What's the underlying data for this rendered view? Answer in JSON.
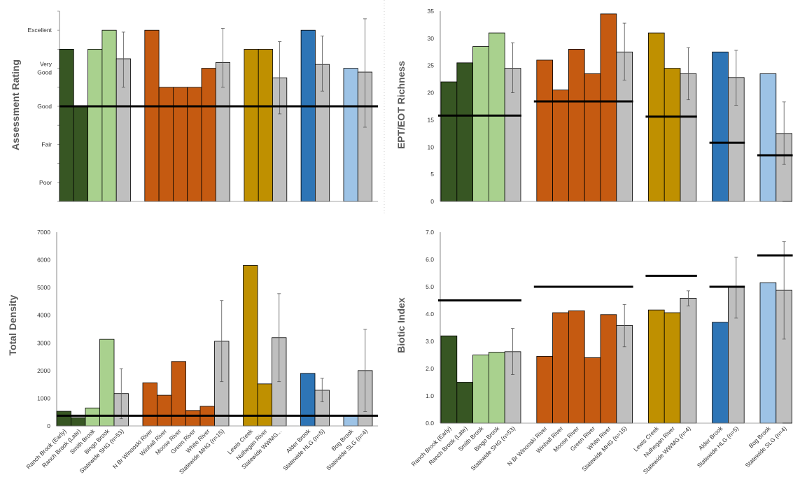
{
  "colors": {
    "dark_green": "#375623",
    "light_green": "#a9d18e",
    "orange": "#c55a11",
    "gold": "#bf9000",
    "blue": "#2e75b6",
    "light_blue": "#9dc3e6",
    "gray": "#bfbfbf",
    "reference_line": "#000000"
  },
  "chart_data": [
    {
      "id": "assessment",
      "type": "bar",
      "ylabel": "Assessment Rating",
      "ylim": [
        0,
        5
      ],
      "y_categorical_ticks": [
        {
          "label": "Excellent",
          "value": 4.5
        },
        {
          "label": "Very\nGood",
          "value": 3.5
        },
        {
          "label": "Good",
          "value": 2.5
        },
        {
          "label": "Fair",
          "value": 1.5
        },
        {
          "label": "Poor",
          "value": 0.5
        }
      ],
      "groups": [
        {
          "bars": [
            {
              "category": "Ranch Brook (Early)",
              "value": 4.0,
              "color": "dark_green"
            },
            {
              "category": "Ranch Brook (Late)",
              "value": 2.5,
              "color": "dark_green"
            },
            {
              "category": "Smith Brook",
              "value": 4.0,
              "color": "light_green"
            },
            {
              "category": "Bingo Brook",
              "value": 4.5,
              "color": "light_green"
            },
            {
              "category": "Statewide SHG (n=53)",
              "value": 3.75,
              "color": "gray",
              "err": [
                3.0,
                4.45
              ]
            }
          ]
        },
        {
          "bars": [
            {
              "category": "N Br Winooski River",
              "value": 4.5,
              "color": "orange"
            },
            {
              "category": "Winhall River",
              "value": 3.0,
              "color": "orange"
            },
            {
              "category": "Moose River",
              "value": 3.0,
              "color": "orange"
            },
            {
              "category": "Green River",
              "value": 3.0,
              "color": "orange"
            },
            {
              "category": "White River",
              "value": 3.5,
              "color": "orange"
            },
            {
              "category": "Statewide MHG (n=15)",
              "value": 3.65,
              "color": "gray",
              "err": [
                3.0,
                4.55
              ]
            }
          ]
        },
        {
          "bars": [
            {
              "category": "Lewis Creek",
              "value": 4.0,
              "color": "gold"
            },
            {
              "category": "Nulhegan River",
              "value": 4.0,
              "color": "gold"
            },
            {
              "category": "Statewide WWMG...",
              "value": 3.25,
              "color": "gray",
              "err": [
                2.3,
                4.2
              ]
            }
          ]
        },
        {
          "bars": [
            {
              "category": "Alder Brook",
              "value": 4.5,
              "color": "blue"
            },
            {
              "category": "Statewide HLG (n=5)",
              "value": 3.6,
              "color": "gray",
              "err": [
                2.9,
                4.35
              ]
            }
          ]
        },
        {
          "bars": [
            {
              "category": "Bog Brook",
              "value": 3.5,
              "color": "light_blue"
            },
            {
              "category": "Statewide SLG (n=4)",
              "value": 3.4,
              "color": "gray",
              "err": [
                1.95,
                4.8
              ]
            }
          ]
        }
      ],
      "reference_lines": [
        {
          "value": 2.5,
          "span": "all"
        }
      ]
    },
    {
      "id": "ept",
      "type": "bar",
      "ylabel": "EPT/EOT Richness",
      "ylim": [
        0,
        35
      ],
      "yticks": [
        "0",
        "5",
        "10",
        "15",
        "20",
        "25",
        "30",
        "35"
      ],
      "groups": [
        {
          "bars": [
            {
              "category": "Ranch Brook (Early)",
              "value": 22,
              "color": "dark_green"
            },
            {
              "category": "Ranch Brook (Late)",
              "value": 25.5,
              "color": "dark_green"
            },
            {
              "category": "Smith Brook",
              "value": 28.5,
              "color": "light_green"
            },
            {
              "category": "Bingo Brook",
              "value": 31,
              "color": "light_green"
            },
            {
              "category": "Statewide SHG (n=53)",
              "value": 24.5,
              "color": "gray",
              "err": [
                20.0,
                29.2
              ]
            }
          ],
          "reference_line": 15.8
        },
        {
          "bars": [
            {
              "category": "N Br Winooski River",
              "value": 26,
              "color": "orange"
            },
            {
              "category": "Winhall River",
              "value": 20.5,
              "color": "orange"
            },
            {
              "category": "Moose River",
              "value": 28,
              "color": "orange"
            },
            {
              "category": "Green River",
              "value": 23.5,
              "color": "orange"
            },
            {
              "category": "White River",
              "value": 34.5,
              "color": "orange"
            },
            {
              "category": "Statewide MHG (n=15)",
              "value": 27.5,
              "color": "gray",
              "err": [
                22.3,
                32.8
              ]
            }
          ],
          "reference_line": 18.4
        },
        {
          "bars": [
            {
              "category": "Lewis Creek",
              "value": 31,
              "color": "gold"
            },
            {
              "category": "Nulhegan River",
              "value": 24.5,
              "color": "gold"
            },
            {
              "category": "Statewide WWMG (n=4)",
              "value": 23.5,
              "color": "gray",
              "err": [
                18.7,
                28.3
              ]
            }
          ],
          "reference_line": 15.6
        },
        {
          "bars": [
            {
              "category": "Alder Brook",
              "value": 27.5,
              "color": "blue"
            },
            {
              "category": "Statewide HLG (n=5)",
              "value": 22.8,
              "color": "gray",
              "err": [
                17.7,
                27.8
              ]
            }
          ],
          "reference_line": 10.8
        },
        {
          "bars": [
            {
              "category": "Bog Brook",
              "value": 23.5,
              "color": "light_blue"
            },
            {
              "category": "Statewide SLG (n=4)",
              "value": 12.5,
              "color": "gray",
              "err": [
                6.8,
                18.3
              ]
            }
          ],
          "reference_line": 8.5
        }
      ]
    },
    {
      "id": "density",
      "type": "bar",
      "ylabel": "Total Density",
      "ylim": [
        0,
        7000
      ],
      "yticks": [
        "0",
        "1000",
        "2000",
        "3000",
        "4000",
        "5000",
        "6000",
        "7000"
      ],
      "groups": [
        {
          "bars": [
            {
              "category": "Ranch Brook (Early)",
              "value": 530,
              "color": "dark_green"
            },
            {
              "category": "Ranch Brook (Late)",
              "value": 300,
              "color": "dark_green"
            },
            {
              "category": "Smith Brook",
              "value": 650,
              "color": "light_green"
            },
            {
              "category": "Bingo Brook",
              "value": 3130,
              "color": "light_green"
            },
            {
              "category": "Statewide SHG (n=53)",
              "value": 1170,
              "color": "gray",
              "err": [
                260,
                2070
              ]
            }
          ]
        },
        {
          "bars": [
            {
              "category": "N Br Winooski River",
              "value": 1560,
              "color": "orange"
            },
            {
              "category": "Winhall River",
              "value": 1110,
              "color": "orange"
            },
            {
              "category": "Moose River",
              "value": 2330,
              "color": "orange"
            },
            {
              "category": "Green River",
              "value": 560,
              "color": "orange"
            },
            {
              "category": "White River",
              "value": 710,
              "color": "orange"
            },
            {
              "category": "Statewide MHG (n=15)",
              "value": 3060,
              "color": "gray",
              "err": [
                1600,
                4530
              ]
            }
          ]
        },
        {
          "bars": [
            {
              "category": "Lewis Creek",
              "value": 5800,
              "color": "gold"
            },
            {
              "category": "Nulhegan River",
              "value": 1520,
              "color": "gold"
            },
            {
              "category": "Statewide WWMG...",
              "value": 3190,
              "color": "gray",
              "err": [
                1600,
                4780
              ]
            }
          ]
        },
        {
          "bars": [
            {
              "category": "Alder Brook",
              "value": 1900,
              "color": "blue"
            },
            {
              "category": "Statewide HLG (n=5)",
              "value": 1290,
              "color": "gray",
              "err": [
                870,
                1720
              ]
            }
          ]
        },
        {
          "bars": [
            {
              "category": "Bog Brook",
              "value": 360,
              "color": "light_blue"
            },
            {
              "category": "Statewide SLG (n=4)",
              "value": 2000,
              "color": "gray",
              "err": [
                520,
                3490
              ]
            }
          ]
        }
      ],
      "reference_lines": [
        {
          "value": 370,
          "span": "all"
        }
      ]
    },
    {
      "id": "biotic",
      "type": "bar",
      "ylabel": "Biotic Index",
      "ylim": [
        0,
        7
      ],
      "yticks": [
        "0.0",
        "1.0",
        "2.0",
        "3.0",
        "4.0",
        "5.0",
        "6.0",
        "7.0"
      ],
      "groups": [
        {
          "bars": [
            {
              "category": "Ranch Brook (Early)",
              "value": 3.2,
              "color": "dark_green"
            },
            {
              "category": "Ranch Brook (Late)",
              "value": 1.5,
              "color": "dark_green"
            },
            {
              "category": "Smith Brook",
              "value": 2.5,
              "color": "light_green"
            },
            {
              "category": "Bingo Brook",
              "value": 2.6,
              "color": "light_green"
            },
            {
              "category": "Statewide SHG (n=53)",
              "value": 2.62,
              "color": "gray",
              "err": [
                1.78,
                3.47
              ]
            }
          ],
          "reference_line": 4.5
        },
        {
          "bars": [
            {
              "category": "N Br Winooski River",
              "value": 2.45,
              "color": "orange"
            },
            {
              "category": "Winhall River",
              "value": 4.05,
              "color": "orange"
            },
            {
              "category": "Moose River",
              "value": 4.12,
              "color": "orange"
            },
            {
              "category": "Green River",
              "value": 2.4,
              "color": "orange"
            },
            {
              "category": "White River",
              "value": 3.98,
              "color": "orange"
            },
            {
              "category": "Statewide MHG (n=15)",
              "value": 3.58,
              "color": "gray",
              "err": [
                2.8,
                4.35
              ]
            }
          ],
          "reference_line": 5.0
        },
        {
          "bars": [
            {
              "category": "Lewis Creek",
              "value": 4.15,
              "color": "gold"
            },
            {
              "category": "Nulhegan River",
              "value": 4.05,
              "color": "gold"
            },
            {
              "category": "Statewide WWMG (n=4)",
              "value": 4.58,
              "color": "gray",
              "err": [
                4.3,
                4.85
              ]
            }
          ],
          "reference_line": 5.4
        },
        {
          "bars": [
            {
              "category": "Alder Brook",
              "value": 3.7,
              "color": "blue"
            },
            {
              "category": "Statewide HLG (n=5)",
              "value": 4.98,
              "color": "gray",
              "err": [
                3.85,
                6.08
              ]
            }
          ],
          "reference_line": 5.0
        },
        {
          "bars": [
            {
              "category": "Bog Brook",
              "value": 5.15,
              "color": "light_blue"
            },
            {
              "category": "Statewide SLG (n=4)",
              "value": 4.87,
              "color": "gray",
              "err": [
                3.08,
                6.65
              ]
            }
          ],
          "reference_line": 6.15
        }
      ]
    }
  ]
}
